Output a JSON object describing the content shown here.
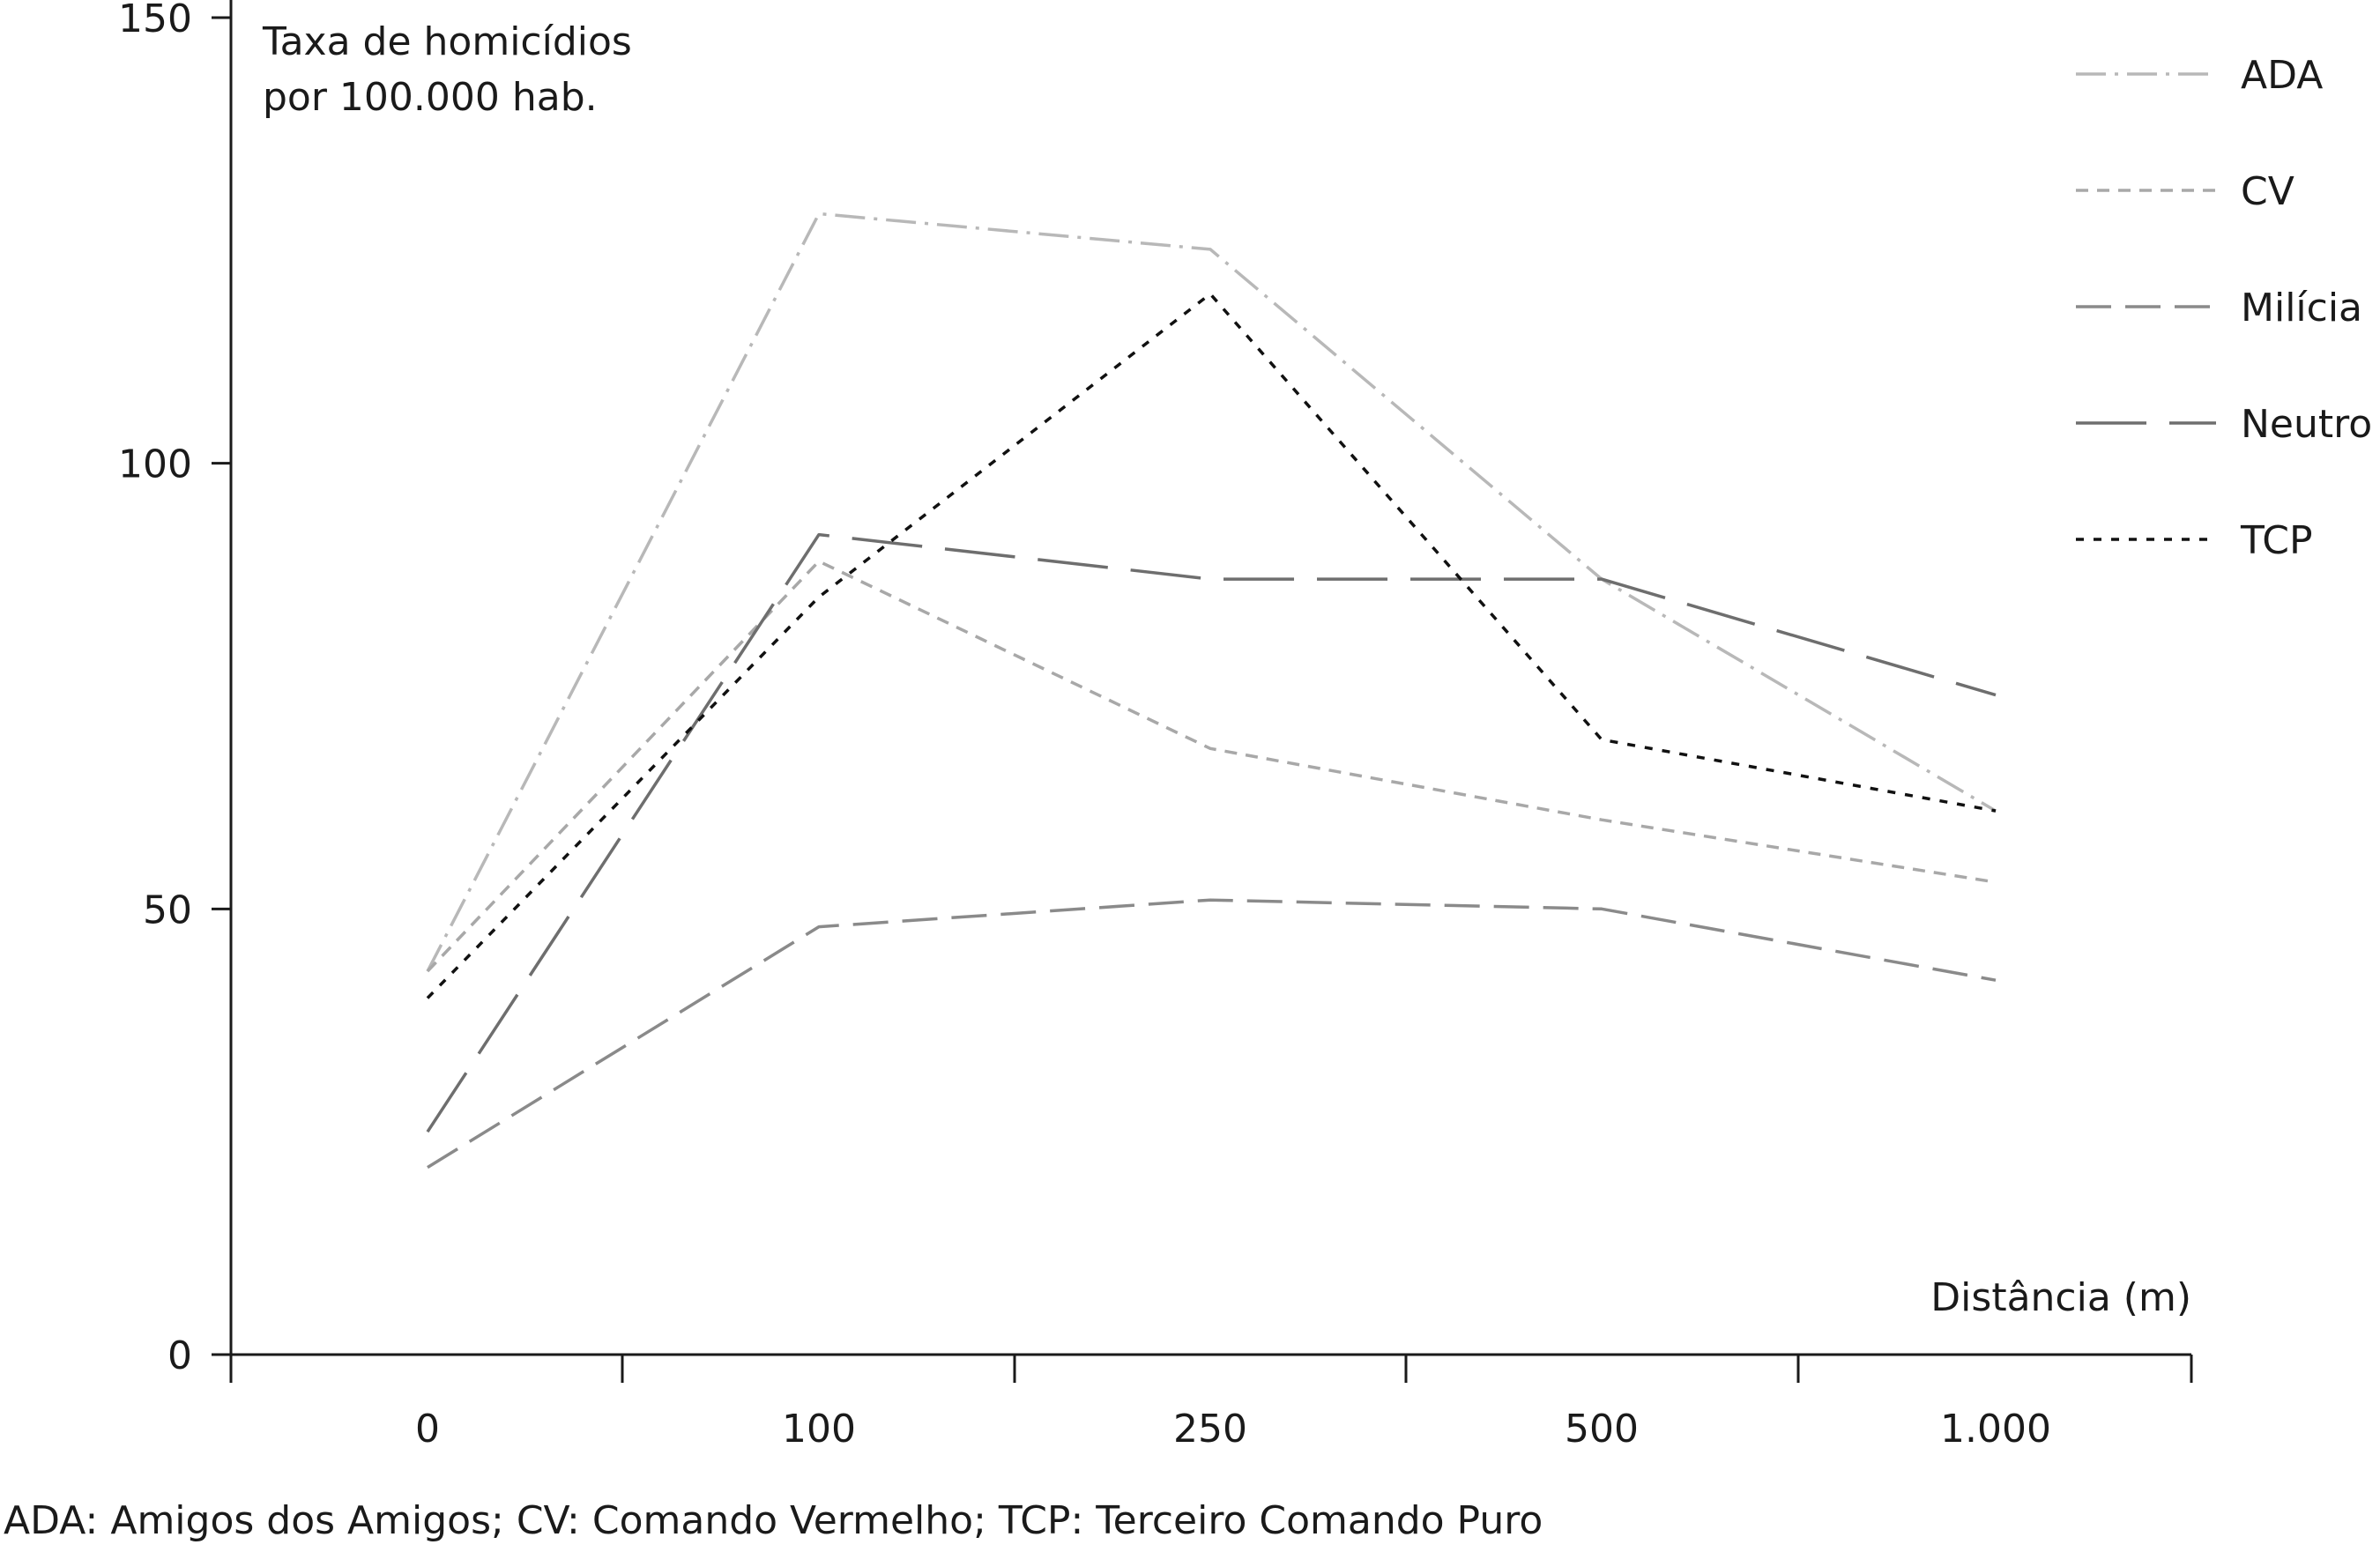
{
  "chart_data": {
    "type": "line",
    "ylabel": [
      "Taxa de homicídios",
      "por 100.000 hab."
    ],
    "xlabel": "Distância (m)",
    "categories": [
      "0",
      "100",
      "250",
      "500",
      "1.000"
    ],
    "yticks": [
      "0",
      "50",
      "100",
      "150"
    ],
    "ylim": [
      0,
      150
    ],
    "grid": false,
    "legend_position": "top-right",
    "series": [
      {
        "name": "ADA",
        "values": [
          43,
          128,
          124,
          87,
          61
        ],
        "color": "#b8b8b8",
        "dash": "dashdot"
      },
      {
        "name": "CV",
        "values": [
          43,
          89,
          68,
          60,
          53
        ],
        "color": "#a8a8a8",
        "dash": "short"
      },
      {
        "name": "Milícia",
        "values": [
          21,
          48,
          51,
          50,
          42
        ],
        "color": "#8a8a8a",
        "dash": "medium"
      },
      {
        "name": "Neutro",
        "values": [
          25,
          92,
          87,
          87,
          74
        ],
        "color": "#6e6e6e",
        "dash": "long"
      },
      {
        "name": "TCP",
        "values": [
          40,
          85,
          119,
          69,
          61
        ],
        "color": "#111111",
        "dash": "dotted"
      }
    ]
  },
  "footnote": "ADA: Amigos dos Amigos; CV: Comando Vermelho; TCP: Terceiro Comando Puro"
}
